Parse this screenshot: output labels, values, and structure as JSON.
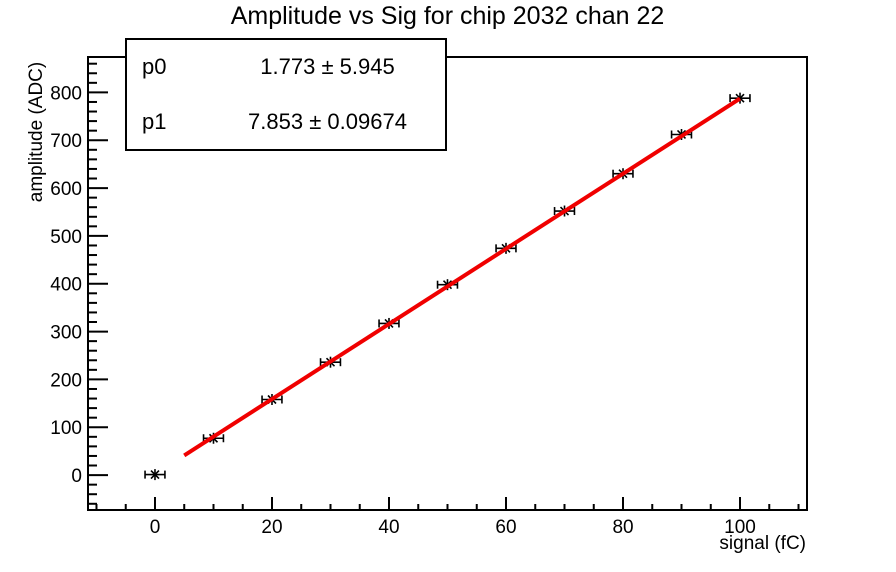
{
  "title": "Amplitude vs Sig for chip 2032 chan 22",
  "stats_box": {
    "rows": [
      {
        "name": "p0",
        "value": "1.773 ± 5.945"
      },
      {
        "name": "p1",
        "value": "7.853 ± 0.09674"
      }
    ]
  },
  "axes": {
    "x": {
      "title": "signal (fC)",
      "major_ticks": [
        0,
        20,
        40,
        60,
        80,
        100
      ],
      "minor_step": 5,
      "range": [
        -11.45,
        111.45
      ]
    },
    "y": {
      "title": "amplitude (ADC)",
      "major_ticks": [
        0,
        100,
        200,
        300,
        400,
        500,
        600,
        700,
        800
      ],
      "minor_step": 20,
      "range": [
        -73,
        874
      ]
    }
  },
  "chart_data": {
    "type": "scatter",
    "title": "Amplitude vs Sig for chip 2032 chan 22",
    "xlabel": "signal (fC)",
    "ylabel": "amplitude (ADC)",
    "x": [
      0,
      10,
      20,
      30,
      40,
      50,
      60,
      70,
      80,
      90,
      100
    ],
    "y": [
      1,
      77,
      158,
      236,
      317,
      398,
      474,
      552,
      630,
      712,
      788
    ],
    "xerr": 1.7,
    "marker": "asterisk",
    "marker_color": "#000000",
    "xlim": [
      -11.45,
      111.45
    ],
    "ylim": [
      -73,
      874
    ],
    "grid": false,
    "legend": "none",
    "fit": {
      "p0": 1.773,
      "p0_err": 5.945,
      "p1": 7.853,
      "p1_err": 0.09674,
      "x_range": [
        5,
        100
      ],
      "color": "#f00000"
    }
  }
}
